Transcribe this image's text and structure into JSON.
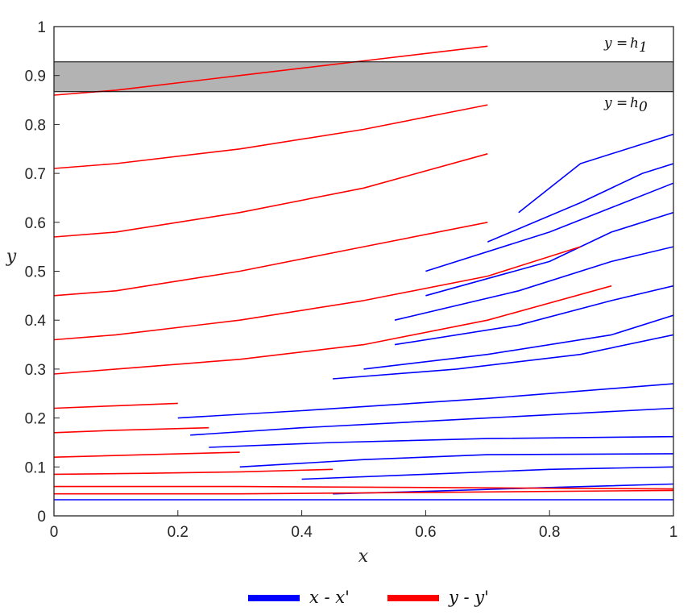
{
  "chart_data": {
    "type": "line",
    "xlabel": "x",
    "ylabel": "y",
    "xlim": [
      0,
      1
    ],
    "ylim": [
      0,
      1
    ],
    "xticks": [
      "0",
      "0.2",
      "0.4",
      "0.6",
      "0.8",
      "1"
    ],
    "yticks": [
      "0",
      "0.1",
      "0.2",
      "0.3",
      "0.4",
      "0.5",
      "0.6",
      "0.7",
      "0.8",
      "0.9",
      "1"
    ],
    "grid": false,
    "shaded_band": {
      "y_from": 0.867,
      "y_to": 0.928,
      "color": "#b3b3b3"
    },
    "annotations": [
      {
        "text": "y = h1",
        "x": 0.88,
        "y": 0.953
      },
      {
        "text": "y = h0",
        "x": 0.88,
        "y": 0.838
      }
    ],
    "colors": {
      "x_x": "#0000ff",
      "y_y": "#ff0000"
    },
    "legend": {
      "placement": "bottom-center"
    },
    "series": [
      {
        "name": "x - x'",
        "color": "#0000ff",
        "curves": [
          {
            "x": [
              0,
              0.2,
              0.5,
              0.8,
              1
            ],
            "y": [
              0.033,
              0.033,
              0.033,
              0.033,
              0.033
            ]
          },
          {
            "x": [
              0.45,
              0.6,
              0.8,
              1
            ],
            "y": [
              0.045,
              0.05,
              0.058,
              0.065
            ]
          },
          {
            "x": [
              0.4,
              0.6,
              0.8,
              1
            ],
            "y": [
              0.075,
              0.085,
              0.095,
              0.1
            ]
          },
          {
            "x": [
              0.3,
              0.5,
              0.7,
              1
            ],
            "y": [
              0.1,
              0.115,
              0.125,
              0.127
            ]
          },
          {
            "x": [
              0.25,
              0.45,
              0.7,
              1
            ],
            "y": [
              0.14,
              0.15,
              0.158,
              0.162
            ]
          },
          {
            "x": [
              0.22,
              0.4,
              0.7,
              1
            ],
            "y": [
              0.165,
              0.18,
              0.2,
              0.22
            ]
          },
          {
            "x": [
              0.2,
              0.4,
              0.7,
              1
            ],
            "y": [
              0.2,
              0.215,
              0.24,
              0.27
            ]
          },
          {
            "x": [
              0.45,
              0.65,
              0.85,
              1
            ],
            "y": [
              0.28,
              0.3,
              0.33,
              0.37
            ]
          },
          {
            "x": [
              0.5,
              0.7,
              0.9,
              1
            ],
            "y": [
              0.3,
              0.33,
              0.37,
              0.41
            ]
          },
          {
            "x": [
              0.55,
              0.75,
              0.9,
              1
            ],
            "y": [
              0.35,
              0.39,
              0.44,
              0.47
            ]
          },
          {
            "x": [
              0.55,
              0.75,
              0.9,
              1
            ],
            "y": [
              0.4,
              0.46,
              0.52,
              0.55
            ]
          },
          {
            "x": [
              0.6,
              0.8,
              0.9,
              1
            ],
            "y": [
              0.45,
              0.52,
              0.58,
              0.62
            ]
          },
          {
            "x": [
              0.6,
              0.8,
              0.92,
              1
            ],
            "y": [
              0.5,
              0.58,
              0.64,
              0.68
            ]
          },
          {
            "x": [
              0.7,
              0.85,
              0.95,
              1
            ],
            "y": [
              0.56,
              0.64,
              0.7,
              0.72
            ]
          },
          {
            "x": [
              0.75,
              0.85,
              1
            ],
            "y": [
              0.62,
              0.72,
              0.78
            ]
          }
        ]
      },
      {
        "name": "y - y'",
        "color": "#ff0000",
        "curves": [
          {
            "x": [
              0,
              0.3,
              0.6,
              1
            ],
            "y": [
              0.045,
              0.045,
              0.048,
              0.052
            ]
          },
          {
            "x": [
              0,
              0.3,
              0.6,
              1
            ],
            "y": [
              0.06,
              0.06,
              0.058,
              0.055
            ]
          },
          {
            "x": [
              0,
              0.15,
              0.3,
              0.45
            ],
            "y": [
              0.085,
              0.087,
              0.09,
              0.095
            ]
          },
          {
            "x": [
              0,
              0.15,
              0.3
            ],
            "y": [
              0.12,
              0.125,
              0.13
            ]
          },
          {
            "x": [
              0,
              0.1,
              0.25
            ],
            "y": [
              0.17,
              0.175,
              0.18
            ]
          },
          {
            "x": [
              0,
              0.1,
              0.2
            ],
            "y": [
              0.22,
              0.225,
              0.23
            ]
          },
          {
            "x": [
              0,
              0.1,
              0.3,
              0.5,
              0.7,
              0.9
            ],
            "y": [
              0.29,
              0.3,
              0.32,
              0.35,
              0.4,
              0.47
            ]
          },
          {
            "x": [
              0,
              0.1,
              0.3,
              0.5,
              0.7,
              0.85
            ],
            "y": [
              0.36,
              0.37,
              0.4,
              0.44,
              0.49,
              0.55
            ]
          },
          {
            "x": [
              0,
              0.1,
              0.3,
              0.5,
              0.7
            ],
            "y": [
              0.45,
              0.46,
              0.5,
              0.55,
              0.6
            ]
          },
          {
            "x": [
              0,
              0.1,
              0.3,
              0.5,
              0.7
            ],
            "y": [
              0.57,
              0.58,
              0.62,
              0.67,
              0.74
            ]
          },
          {
            "x": [
              0,
              0.1,
              0.3,
              0.5,
              0.7
            ],
            "y": [
              0.71,
              0.72,
              0.75,
              0.79,
              0.84
            ]
          },
          {
            "x": [
              0,
              0.1,
              0.3,
              0.5,
              0.7
            ],
            "y": [
              0.86,
              0.87,
              0.9,
              0.93,
              0.96
            ]
          }
        ]
      }
    ]
  }
}
